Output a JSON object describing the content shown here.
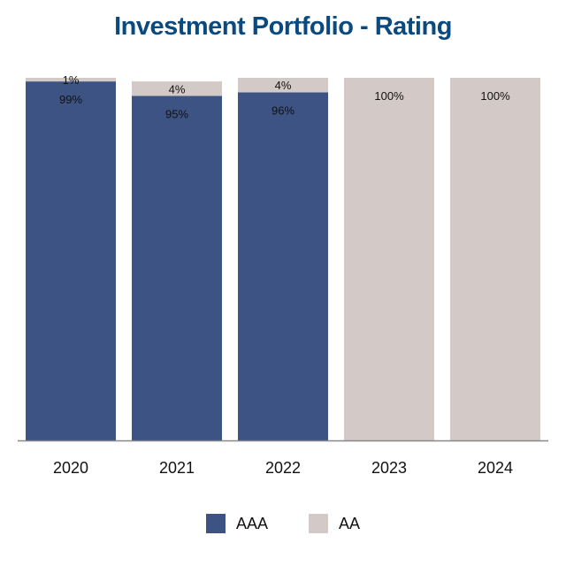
{
  "chart_data": {
    "type": "bar",
    "stacked": true,
    "title": "Investment Portfolio - Rating",
    "xlabel": "",
    "ylabel": "",
    "ylim": [
      0,
      100
    ],
    "grid": false,
    "legend_position": "bottom",
    "categories": [
      "2020",
      "2021",
      "2022",
      "2023",
      "2024"
    ],
    "series": [
      {
        "name": "AAA",
        "color": "#3c5384",
        "values": [
          99,
          95,
          96,
          0,
          0
        ],
        "labels": [
          "99%",
          "95%",
          "96%",
          "",
          ""
        ]
      },
      {
        "name": "AA",
        "color": "#d3c9c7",
        "values": [
          1,
          4,
          4,
          100,
          100
        ],
        "labels": [
          "1%",
          "4%",
          "4%",
          "100%",
          "100%"
        ]
      }
    ]
  },
  "colors": {
    "title": "#0b4a7e",
    "axis": "#888888"
  }
}
